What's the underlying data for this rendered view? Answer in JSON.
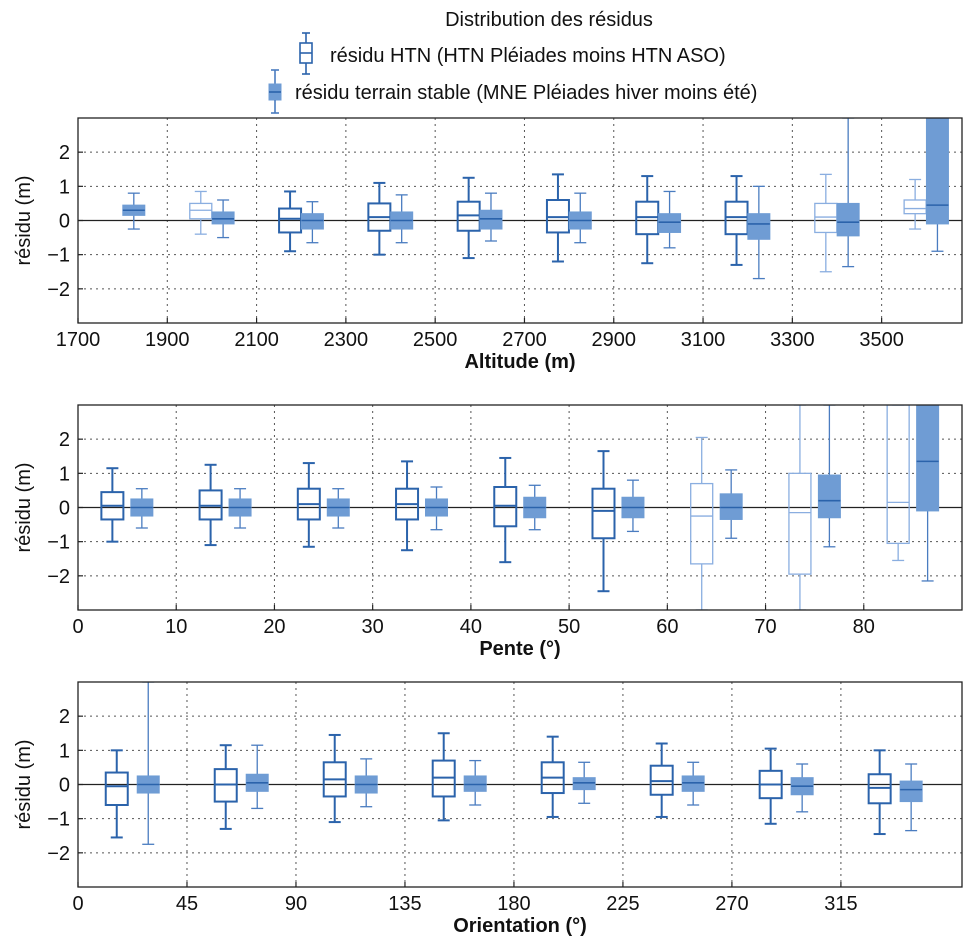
{
  "figure": {
    "title": "Distribution des résidus",
    "legend": [
      {
        "label": "résidu HTN (HTN Pléiades moins HTN ASO)",
        "style": "outline"
      },
      {
        "label": "résidu terrain stable (MNE Pléiades hiver moins été)",
        "style": "filled"
      }
    ],
    "colors": {
      "htn_dark": "#2b63ab",
      "htn_light": "#8aaee0",
      "stable_fill": "#6f9cd4",
      "stable_dark": "#4a7cc0",
      "grid": "#555555",
      "axis": "#222222"
    }
  },
  "chart_data": [
    {
      "type": "box",
      "xlabel": "Altitude (m)",
      "ylabel": "résidu (m)",
      "xlim": [
        1700,
        3680
      ],
      "ylim": [
        -3,
        3
      ],
      "xticks": [
        1700,
        1900,
        2100,
        2300,
        2500,
        2700,
        2900,
        3100,
        3300,
        3500
      ],
      "yticks": [
        -2,
        -1,
        0,
        1,
        2
      ],
      "grid": true,
      "series": [
        {
          "name": "résidu HTN (HTN Pléiades moins HTN ASO)",
          "style": "outline",
          "boxes": [
            {
              "x": 1975,
              "whislo": -0.4,
              "q1": 0.05,
              "med": 0.3,
              "q3": 0.5,
              "whishi": 0.85,
              "light": true
            },
            {
              "x": 2175,
              "whislo": -0.9,
              "q1": -0.35,
              "med": 0.05,
              "q3": 0.35,
              "whishi": 0.85
            },
            {
              "x": 2375,
              "whislo": -1.0,
              "q1": -0.3,
              "med": 0.1,
              "q3": 0.5,
              "whishi": 1.1
            },
            {
              "x": 2575,
              "whislo": -1.1,
              "q1": -0.3,
              "med": 0.15,
              "q3": 0.55,
              "whishi": 1.25
            },
            {
              "x": 2775,
              "whislo": -1.2,
              "q1": -0.35,
              "med": 0.1,
              "q3": 0.6,
              "whishi": 1.35
            },
            {
              "x": 2975,
              "whislo": -1.25,
              "q1": -0.4,
              "med": 0.1,
              "q3": 0.55,
              "whishi": 1.3
            },
            {
              "x": 3175,
              "whislo": -1.3,
              "q1": -0.4,
              "med": 0.1,
              "q3": 0.55,
              "whishi": 1.3
            },
            {
              "x": 3375,
              "whislo": -1.5,
              "q1": -0.35,
              "med": 0.1,
              "q3": 0.5,
              "whishi": 1.35,
              "light": true
            },
            {
              "x": 3575,
              "whislo": -0.25,
              "q1": 0.2,
              "med": 0.35,
              "q3": 0.6,
              "whishi": 1.2,
              "light": true
            }
          ]
        },
        {
          "name": "résidu terrain stable (MNE Pléiades hiver moins été)",
          "style": "filled",
          "boxes": [
            {
              "x": 1825,
              "whislo": -0.25,
              "q1": 0.15,
              "med": 0.3,
              "q3": 0.45,
              "whishi": 0.8
            },
            {
              "x": 2025,
              "whislo": -0.5,
              "q1": -0.1,
              "med": 0.05,
              "q3": 0.25,
              "whishi": 0.6
            },
            {
              "x": 2225,
              "whislo": -0.65,
              "q1": -0.25,
              "med": 0.0,
              "q3": 0.2,
              "whishi": 0.55
            },
            {
              "x": 2425,
              "whislo": -0.65,
              "q1": -0.25,
              "med": 0.0,
              "q3": 0.25,
              "whishi": 0.75
            },
            {
              "x": 2625,
              "whislo": -0.6,
              "q1": -0.25,
              "med": 0.05,
              "q3": 0.3,
              "whishi": 0.8
            },
            {
              "x": 2825,
              "whislo": -0.65,
              "q1": -0.25,
              "med": 0.0,
              "q3": 0.25,
              "whishi": 0.8
            },
            {
              "x": 3025,
              "whislo": -0.8,
              "q1": -0.35,
              "med": -0.05,
              "q3": 0.2,
              "whishi": 0.85
            },
            {
              "x": 3225,
              "whislo": -1.7,
              "q1": -0.55,
              "med": -0.1,
              "q3": 0.2,
              "whishi": 1.0
            },
            {
              "x": 3425,
              "whislo": -1.35,
              "q1": -0.45,
              "med": -0.05,
              "q3": 0.5,
              "whishi": 3.0
            },
            {
              "x": 3625,
              "whislo": -0.9,
              "q1": -0.1,
              "med": 0.45,
              "q3": 3.0,
              "whishi": 3.0
            }
          ]
        }
      ]
    },
    {
      "type": "box",
      "xlabel": "Pente (°)",
      "ylabel": "résidu (m)",
      "xlim": [
        0,
        90
      ],
      "ylim": [
        -3,
        3
      ],
      "xticks": [
        0,
        10,
        20,
        30,
        40,
        50,
        60,
        70,
        80
      ],
      "yticks": [
        -2,
        -1,
        0,
        1,
        2
      ],
      "grid": true,
      "series": [
        {
          "name": "résidu HTN (HTN Pléiades moins HTN ASO)",
          "style": "outline",
          "boxes": [
            {
              "x": 3.5,
              "whislo": -1.0,
              "q1": -0.35,
              "med": 0.05,
              "q3": 0.45,
              "whishi": 1.15
            },
            {
              "x": 13.5,
              "whislo": -1.1,
              "q1": -0.35,
              "med": 0.05,
              "q3": 0.5,
              "whishi": 1.25
            },
            {
              "x": 23.5,
              "whislo": -1.15,
              "q1": -0.35,
              "med": 0.1,
              "q3": 0.55,
              "whishi": 1.3
            },
            {
              "x": 33.5,
              "whislo": -1.25,
              "q1": -0.35,
              "med": 0.1,
              "q3": 0.55,
              "whishi": 1.35
            },
            {
              "x": 43.5,
              "whislo": -1.6,
              "q1": -0.55,
              "med": 0.05,
              "q3": 0.6,
              "whishi": 1.45
            },
            {
              "x": 53.5,
              "whislo": -2.45,
              "q1": -0.9,
              "med": -0.1,
              "q3": 0.55,
              "whishi": 1.65
            },
            {
              "x": 63.5,
              "whislo": -3.0,
              "q1": -1.65,
              "med": -0.25,
              "q3": 0.7,
              "whishi": 2.05,
              "light": true
            },
            {
              "x": 73.5,
              "whislo": -3.0,
              "q1": -1.95,
              "med": -0.15,
              "q3": 1.0,
              "whishi": 3.0,
              "light": true
            },
            {
              "x": 83.5,
              "whislo": -1.55,
              "q1": -1.05,
              "med": 0.15,
              "q3": 3.0,
              "whishi": 3.0,
              "light": true
            }
          ]
        },
        {
          "name": "résidu terrain stable (MNE Pléiades hiver moins été)",
          "style": "filled",
          "boxes": [
            {
              "x": 6.5,
              "whislo": -0.6,
              "q1": -0.25,
              "med": 0.0,
              "q3": 0.25,
              "whishi": 0.55
            },
            {
              "x": 16.5,
              "whislo": -0.6,
              "q1": -0.25,
              "med": 0.0,
              "q3": 0.25,
              "whishi": 0.55
            },
            {
              "x": 26.5,
              "whislo": -0.6,
              "q1": -0.25,
              "med": 0.0,
              "q3": 0.25,
              "whishi": 0.55
            },
            {
              "x": 36.5,
              "whislo": -0.65,
              "q1": -0.25,
              "med": 0.0,
              "q3": 0.25,
              "whishi": 0.6
            },
            {
              "x": 46.5,
              "whislo": -0.65,
              "q1": -0.3,
              "med": 0.0,
              "q3": 0.3,
              "whishi": 0.65
            },
            {
              "x": 56.5,
              "whislo": -0.7,
              "q1": -0.3,
              "med": 0.0,
              "q3": 0.3,
              "whishi": 0.8
            },
            {
              "x": 66.5,
              "whislo": -0.9,
              "q1": -0.35,
              "med": 0.0,
              "q3": 0.4,
              "whishi": 1.1
            },
            {
              "x": 76.5,
              "whislo": -1.15,
              "q1": -0.3,
              "med": 0.2,
              "q3": 0.95,
              "whishi": 3.0
            },
            {
              "x": 86.5,
              "whislo": -2.15,
              "q1": -0.1,
              "med": 1.35,
              "q3": 3.0,
              "whishi": 3.0
            }
          ]
        }
      ]
    },
    {
      "type": "box",
      "xlabel": "Orientation (°)",
      "ylabel": "résidu (m)",
      "xlim": [
        0,
        365
      ],
      "ylim": [
        -3,
        3
      ],
      "xticks": [
        0,
        45,
        90,
        135,
        180,
        225,
        270,
        315
      ],
      "yticks": [
        -2,
        -1,
        0,
        1,
        2
      ],
      "grid": true,
      "series": [
        {
          "name": "résidu HTN (HTN Pléiades moins HTN ASO)",
          "style": "outline",
          "boxes": [
            {
              "x": 16,
              "whislo": -1.55,
              "q1": -0.6,
              "med": -0.05,
              "q3": 0.35,
              "whishi": 1.0
            },
            {
              "x": 61,
              "whislo": -1.3,
              "q1": -0.5,
              "med": 0.0,
              "q3": 0.45,
              "whishi": 1.15
            },
            {
              "x": 106,
              "whislo": -1.1,
              "q1": -0.35,
              "med": 0.15,
              "q3": 0.65,
              "whishi": 1.45
            },
            {
              "x": 151,
              "whislo": -1.05,
              "q1": -0.35,
              "med": 0.2,
              "q3": 0.7,
              "whishi": 1.5
            },
            {
              "x": 196,
              "whislo": -0.95,
              "q1": -0.25,
              "med": 0.2,
              "q3": 0.65,
              "whishi": 1.4
            },
            {
              "x": 241,
              "whislo": -0.95,
              "q1": -0.3,
              "med": 0.1,
              "q3": 0.55,
              "whishi": 1.2
            },
            {
              "x": 286,
              "whislo": -1.15,
              "q1": -0.4,
              "med": 0.0,
              "q3": 0.4,
              "whishi": 1.05
            },
            {
              "x": 331,
              "whislo": -1.45,
              "q1": -0.55,
              "med": -0.1,
              "q3": 0.3,
              "whishi": 1.0
            }
          ]
        },
        {
          "name": "résidu terrain stable (MNE Pléiades hiver moins été)",
          "style": "filled",
          "boxes": [
            {
              "x": 29,
              "whislo": -1.75,
              "q1": -0.25,
              "med": 0.0,
              "q3": 0.25,
              "whishi": 3.0
            },
            {
              "x": 74,
              "whislo": -0.7,
              "q1": -0.2,
              "med": 0.05,
              "q3": 0.3,
              "whishi": 1.15
            },
            {
              "x": 119,
              "whislo": -0.65,
              "q1": -0.25,
              "med": 0.0,
              "q3": 0.25,
              "whishi": 0.75
            },
            {
              "x": 164,
              "whislo": -0.6,
              "q1": -0.2,
              "med": 0.0,
              "q3": 0.25,
              "whishi": 0.7
            },
            {
              "x": 209,
              "whislo": -0.55,
              "q1": -0.15,
              "med": 0.05,
              "q3": 0.2,
              "whishi": 0.65
            },
            {
              "x": 254,
              "whislo": -0.6,
              "q1": -0.2,
              "med": 0.05,
              "q3": 0.25,
              "whishi": 0.65
            },
            {
              "x": 299,
              "whislo": -0.8,
              "q1": -0.3,
              "med": -0.05,
              "q3": 0.2,
              "whishi": 0.6
            },
            {
              "x": 344,
              "whislo": -1.35,
              "q1": -0.5,
              "med": -0.15,
              "q3": 0.1,
              "whishi": 0.6
            }
          ]
        }
      ]
    }
  ]
}
